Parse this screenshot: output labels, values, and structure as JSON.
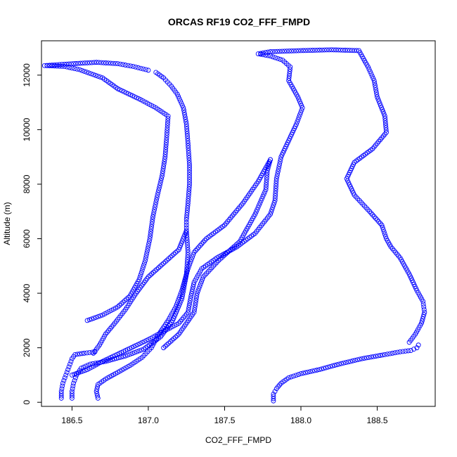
{
  "chart_data": {
    "type": "scatter",
    "title": "ORCAS RF19 CO2_FFF_FMPD",
    "xlabel": "CO2_FFF_FMPD",
    "ylabel": "Altitude (m)",
    "xlim": [
      186.3,
      188.88
    ],
    "ylim": [
      -150,
      13260
    ],
    "xticks": [
      186.5,
      187.0,
      187.5,
      188.0,
      188.5
    ],
    "xtick_labels": [
      "186.5",
      "187.0",
      "187.5",
      "188.0",
      "188.5"
    ],
    "yticks": [
      0,
      2000,
      4000,
      6000,
      8000,
      10000,
      12000
    ],
    "ytick_labels": [
      "0",
      "2000",
      "4000",
      "6000",
      "8000",
      "10000",
      "12000"
    ],
    "grid": false,
    "marker": "open-circle",
    "color": "#0000ff",
    "series": [
      {
        "values": [
          [
            186.43,
            150
          ],
          [
            186.43,
            400
          ],
          [
            186.44,
            700
          ],
          [
            186.46,
            1000
          ],
          [
            186.48,
            1300
          ],
          [
            186.5,
            1600
          ],
          [
            186.52,
            1750
          ],
          [
            186.58,
            1800
          ],
          [
            186.65,
            1850
          ]
        ]
      },
      {
        "values": [
          [
            186.5,
            150
          ],
          [
            186.5,
            400
          ],
          [
            186.51,
            700
          ],
          [
            186.53,
            1000
          ],
          [
            186.56,
            1250
          ],
          [
            186.62,
            1400
          ],
          [
            186.72,
            1500
          ],
          [
            186.85,
            1700
          ],
          [
            186.97,
            1950
          ],
          [
            187.08,
            2400
          ],
          [
            187.16,
            3000
          ],
          [
            187.22,
            3800
          ],
          [
            187.25,
            4700
          ],
          [
            187.26,
            5500
          ],
          [
            187.25,
            6300
          ]
        ]
      },
      {
        "values": [
          [
            186.67,
            150
          ],
          [
            186.66,
            400
          ],
          [
            186.67,
            650
          ],
          [
            186.72,
            850
          ],
          [
            186.8,
            1100
          ],
          [
            186.88,
            1350
          ],
          [
            186.96,
            1650
          ],
          [
            187.02,
            2000
          ],
          [
            187.07,
            2500
          ],
          [
            187.13,
            3000
          ],
          [
            187.18,
            3500
          ],
          [
            187.22,
            4100
          ],
          [
            187.26,
            4900
          ],
          [
            187.3,
            5500
          ],
          [
            187.38,
            6000
          ],
          [
            187.5,
            6500
          ],
          [
            187.62,
            7300
          ],
          [
            187.72,
            8100
          ],
          [
            187.8,
            8900
          ]
        ]
      },
      {
        "values": [
          [
            186.6,
            3000
          ],
          [
            186.7,
            3200
          ],
          [
            186.8,
            3500
          ],
          [
            186.88,
            3900
          ],
          [
            186.94,
            4500
          ],
          [
            186.98,
            5200
          ],
          [
            187.01,
            6000
          ],
          [
            187.03,
            6800
          ],
          [
            187.06,
            7600
          ],
          [
            187.09,
            8300
          ],
          [
            187.11,
            9000
          ],
          [
            187.12,
            9700
          ],
          [
            187.13,
            10500
          ],
          [
            187.05,
            10800
          ],
          [
            186.95,
            11100
          ],
          [
            186.8,
            11500
          ],
          [
            186.7,
            11900
          ],
          [
            186.55,
            12200
          ],
          [
            186.45,
            12320
          ],
          [
            186.32,
            12350
          ],
          [
            186.45,
            12400
          ],
          [
            186.6,
            12450
          ],
          [
            186.66,
            12470
          ],
          [
            186.8,
            12420
          ],
          [
            186.9,
            12320
          ],
          [
            187.0,
            12180
          ]
        ]
      },
      {
        "values": [
          [
            187.05,
            12100
          ],
          [
            187.1,
            11900
          ],
          [
            187.15,
            11600
          ],
          [
            187.19,
            11300
          ],
          [
            187.23,
            10800
          ],
          [
            187.25,
            10200
          ],
          [
            187.26,
            9500
          ],
          [
            187.27,
            8700
          ],
          [
            187.27,
            8000
          ],
          [
            187.26,
            7300
          ],
          [
            187.25,
            6700
          ],
          [
            187.25,
            6300
          ],
          [
            187.2,
            5600
          ],
          [
            187.1,
            5100
          ],
          [
            187.0,
            4600
          ],
          [
            186.92,
            4000
          ],
          [
            186.85,
            3400
          ],
          [
            186.78,
            2900
          ],
          [
            186.72,
            2500
          ],
          [
            186.68,
            2100
          ],
          [
            186.64,
            1800
          ]
        ]
      },
      {
        "values": [
          [
            187.1,
            2000
          ],
          [
            187.2,
            2500
          ],
          [
            187.3,
            3300
          ],
          [
            187.32,
            4000
          ],
          [
            187.36,
            4600
          ],
          [
            187.46,
            5200
          ],
          [
            187.6,
            5900
          ],
          [
            187.7,
            6900
          ],
          [
            187.77,
            7800
          ],
          [
            187.78,
            8500
          ],
          [
            187.8,
            8900
          ]
        ]
      },
      {
        "values": [
          [
            187.82,
            50
          ],
          [
            187.82,
            300
          ],
          [
            187.84,
            500
          ],
          [
            187.87,
            700
          ],
          [
            187.92,
            900
          ],
          [
            188.0,
            1050
          ],
          [
            188.12,
            1200
          ],
          [
            188.25,
            1400
          ],
          [
            188.4,
            1600
          ],
          [
            188.55,
            1750
          ],
          [
            188.65,
            1850
          ],
          [
            188.72,
            1900
          ],
          [
            188.76,
            2000
          ],
          [
            188.77,
            2100
          ]
        ]
      },
      {
        "values": [
          [
            188.71,
            2200
          ],
          [
            188.75,
            2500
          ],
          [
            188.79,
            2900
          ],
          [
            188.81,
            3300
          ],
          [
            188.8,
            3700
          ],
          [
            188.76,
            4100
          ],
          [
            188.71,
            4700
          ],
          [
            188.65,
            5300
          ],
          [
            188.59,
            5700
          ],
          [
            188.56,
            6000
          ],
          [
            188.53,
            6500
          ],
          [
            188.45,
            7000
          ],
          [
            188.35,
            7600
          ],
          [
            188.3,
            8200
          ],
          [
            188.35,
            8800
          ],
          [
            188.47,
            9300
          ],
          [
            188.56,
            9900
          ],
          [
            188.55,
            10500
          ],
          [
            188.5,
            11200
          ],
          [
            188.48,
            11800
          ],
          [
            188.44,
            12300
          ],
          [
            188.38,
            12900
          ],
          [
            188.2,
            12930
          ],
          [
            188.0,
            12900
          ],
          [
            187.8,
            12860
          ],
          [
            187.72,
            12780
          ],
          [
            187.8,
            12700
          ],
          [
            187.88,
            12550
          ],
          [
            187.93,
            12300
          ],
          [
            187.92,
            11800
          ],
          [
            187.98,
            11200
          ],
          [
            188.01,
            10800
          ],
          [
            187.97,
            10200
          ],
          [
            187.92,
            9600
          ],
          [
            187.87,
            9000
          ],
          [
            187.84,
            8200
          ],
          [
            187.83,
            7400
          ],
          [
            187.8,
            6900
          ],
          [
            187.7,
            6200
          ],
          [
            187.58,
            5700
          ],
          [
            187.45,
            5300
          ],
          [
            187.35,
            4900
          ],
          [
            187.3,
            4400
          ],
          [
            187.28,
            3900
          ],
          [
            187.26,
            3300
          ],
          [
            187.2,
            2900
          ],
          [
            187.1,
            2600
          ],
          [
            187.0,
            2300
          ],
          [
            186.85,
            1900
          ],
          [
            186.7,
            1500
          ],
          [
            186.6,
            1200
          ],
          [
            186.5,
            1000
          ]
        ]
      }
    ]
  }
}
